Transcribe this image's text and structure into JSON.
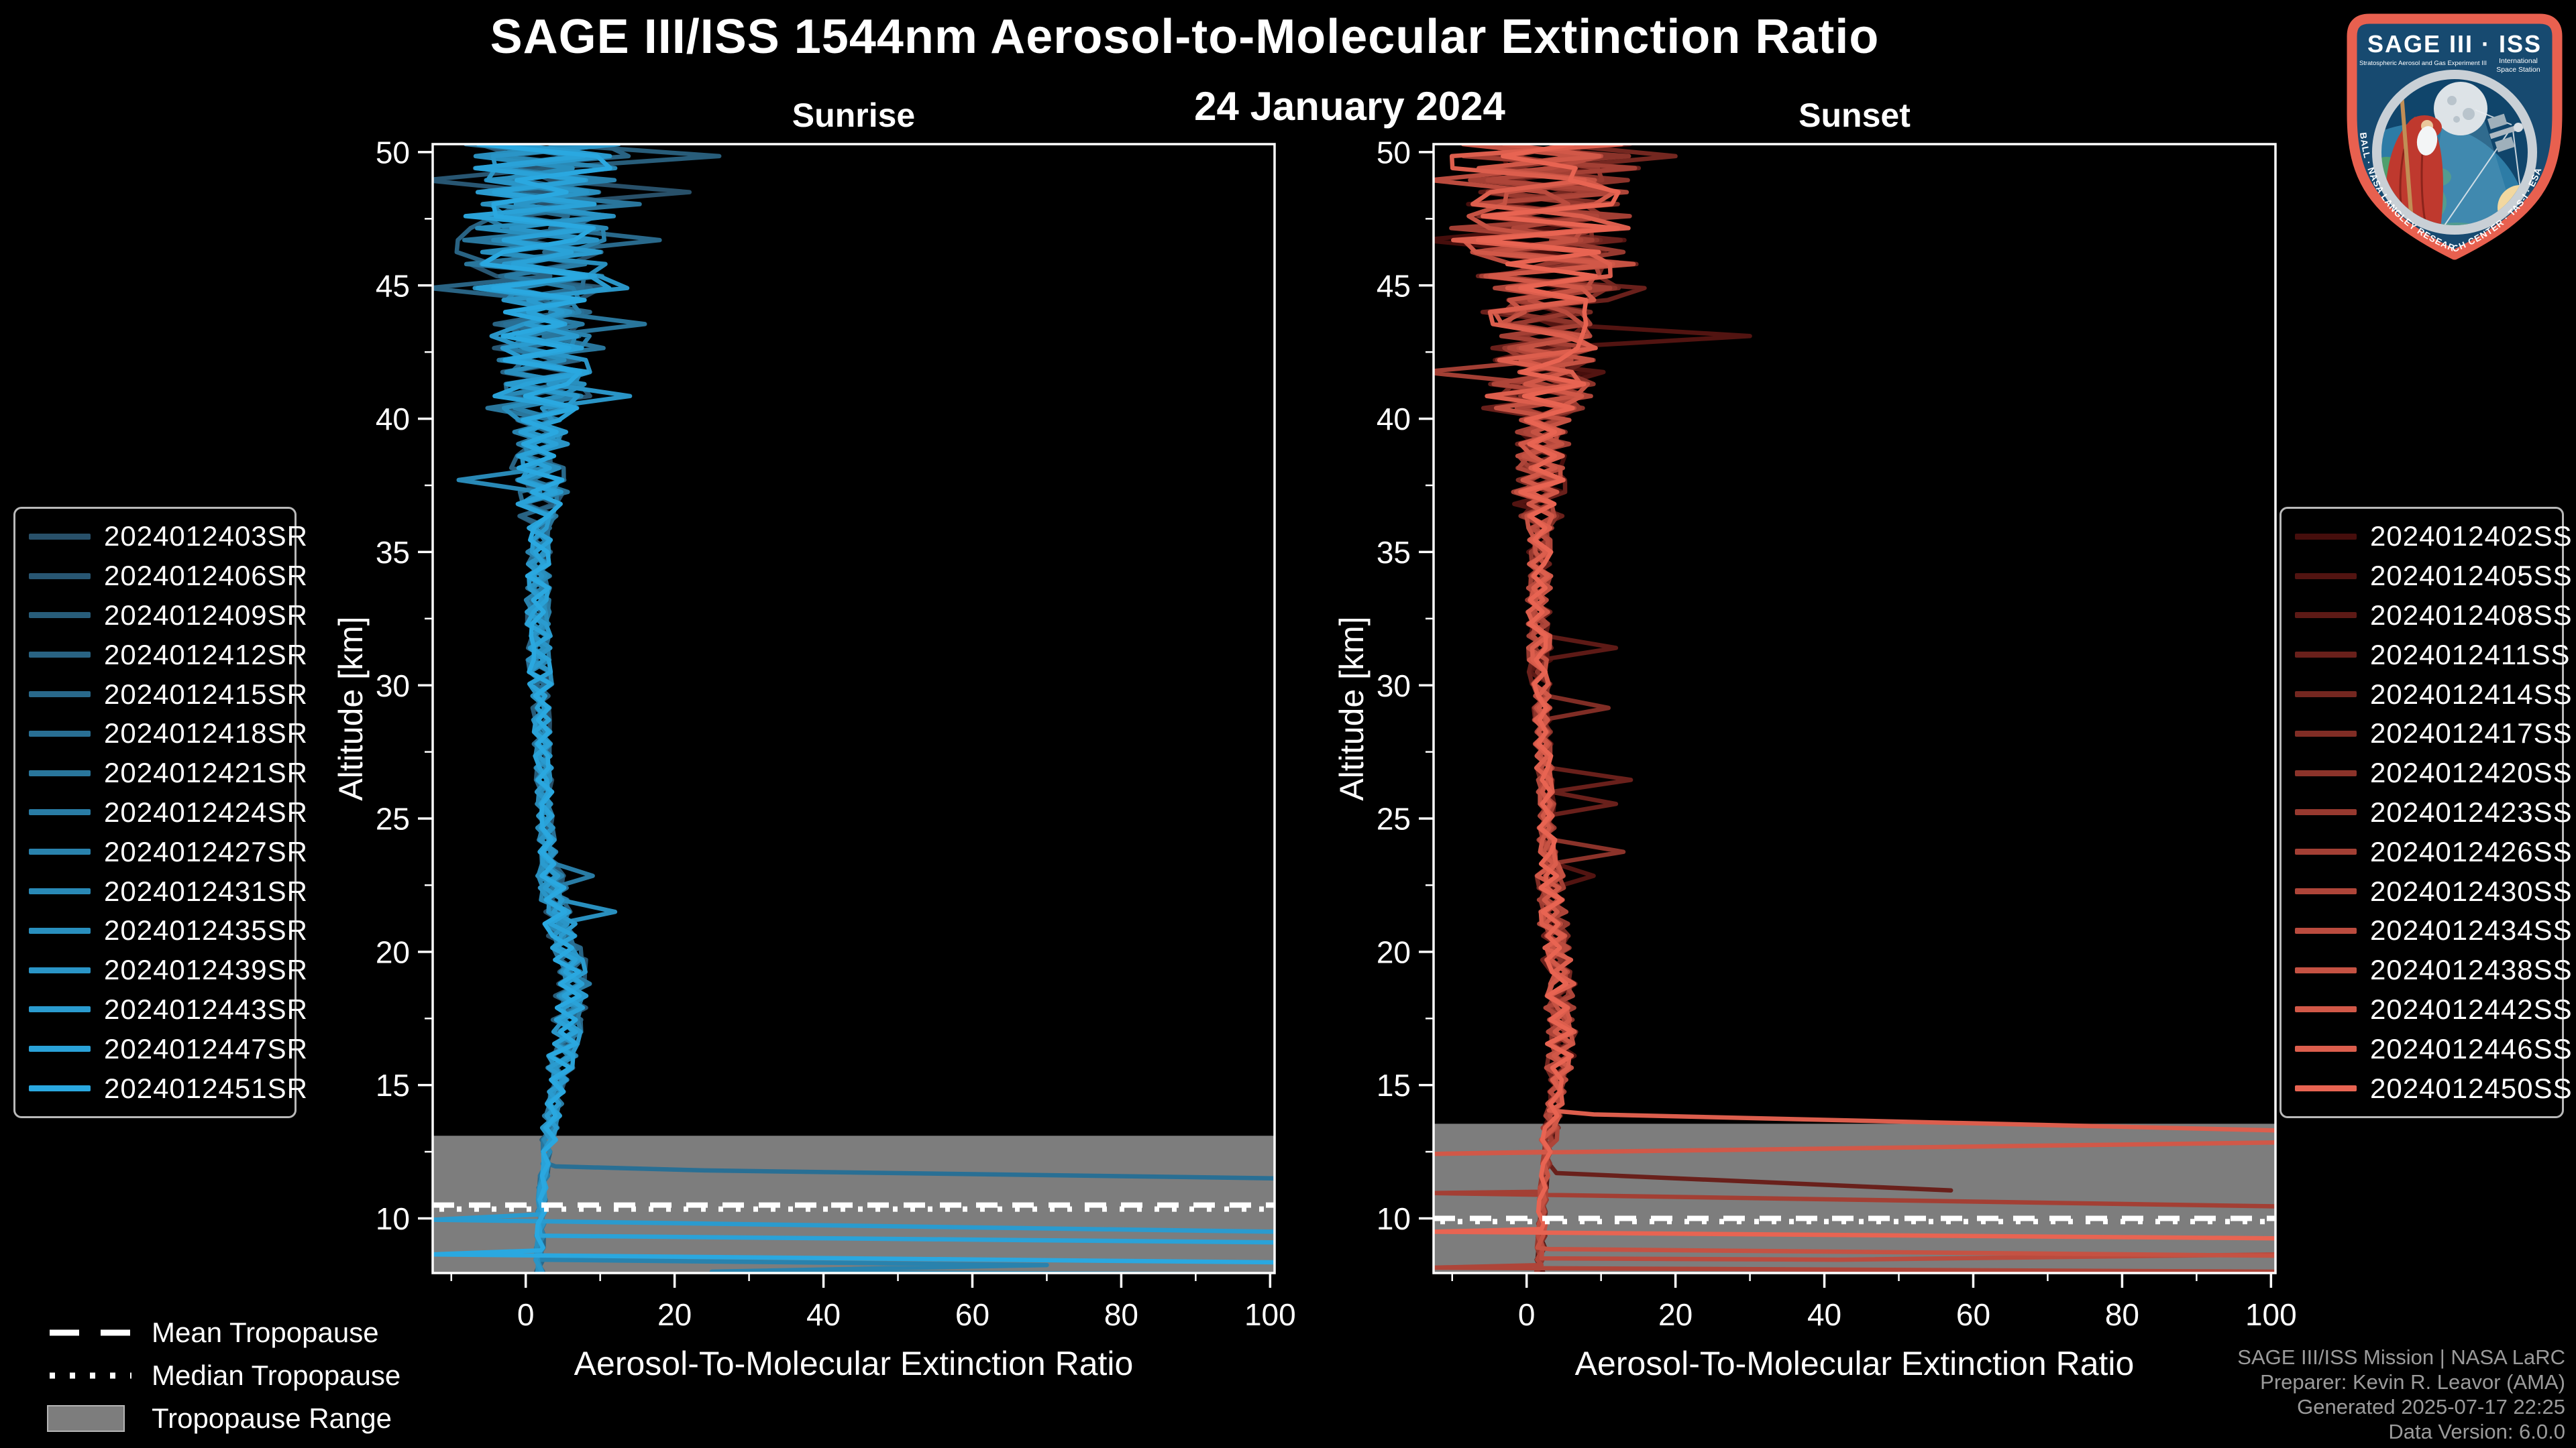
{
  "header": {
    "title": "SAGE III/ISS 1544nm Aerosol-to-Molecular Extinction Ratio",
    "date": "24 January 2024"
  },
  "chart_data": [
    {
      "type": "line",
      "title": "Sunrise",
      "xlabel": "Aerosol-To-Molecular Extinction Ratio",
      "ylabel": "Altitude [km]",
      "xlim": [
        -12.5,
        100.6
      ],
      "ylim": [
        7.95,
        50.3
      ],
      "xticks": [
        0,
        20,
        40,
        60,
        80,
        100
      ],
      "yticks": [
        10,
        15,
        20,
        25,
        30,
        35,
        40,
        45,
        50
      ],
      "xminor": [
        -10,
        10,
        30,
        50,
        70,
        90
      ],
      "yminor": [
        12.5,
        17.5,
        22.5,
        27.5,
        32.5,
        37.5,
        42.5,
        47.5
      ],
      "grid": false,
      "tropopause": {
        "mean_km": 10.5,
        "median_km": 10.35,
        "band_top_km": 13.1,
        "band_color": "#7d7d7d",
        "line_color": "#ffffff"
      },
      "series": [
        {
          "label": "2024012403SR",
          "color": "#285069",
          "seed": 11,
          "amp_top": 9,
          "amp_mid": 2.6,
          "bulge": 5.0,
          "spikes": [
            [
              48.4,
              22
            ]
          ],
          "bottom": null
        },
        {
          "label": "2024012406SR",
          "color": "#285672",
          "seed": 12,
          "amp_top": 11,
          "amp_mid": 3.0,
          "bulge": 6.5,
          "spikes": [
            [
              48.9,
              -13.5
            ]
          ],
          "bottom": null
        },
        {
          "label": "2024012409SR",
          "color": "#285d7a",
          "seed": 13,
          "amp_top": 8,
          "amp_mid": 2.4,
          "bulge": 4.5,
          "spikes": [
            [
              49.9,
              26
            ]
          ],
          "bottom": null
        },
        {
          "label": "2024012412SR",
          "color": "#296383",
          "seed": 14,
          "amp_top": 12,
          "amp_mid": 3.2,
          "bulge": 7.0,
          "spikes": [
            [
              44.7,
              -13
            ]
          ],
          "bottom": null
        },
        {
          "label": "2024012415SR",
          "color": "#29698b",
          "seed": 15,
          "amp_top": 10,
          "amp_mid": 2.8,
          "bulge": 5.5,
          "spikes": [
            [
              46.9,
              18
            ]
          ],
          "bottom": null
        },
        {
          "label": "2024012418SR",
          "color": "#296f94",
          "seed": 16,
          "amp_top": 9,
          "amp_mid": 2.5,
          "bulge": 6.0,
          "spikes": null,
          "bottom": [
            [
              11.95,
              4
            ],
            [
              11.8,
              24
            ],
            [
              11.5,
              101
            ]
          ]
        },
        {
          "label": "2024012421SR",
          "color": "#29769c",
          "seed": 17,
          "amp_top": 13,
          "amp_mid": 3.1,
          "bulge": 5.0,
          "spikes": [
            [
              43.7,
              16
            ]
          ],
          "bottom": null
        },
        {
          "label": "2024012424SR",
          "color": "#297ca5",
          "seed": 18,
          "amp_top": 8.5,
          "amp_mid": 2.4,
          "bulge": 6.5,
          "spikes": [
            [
              23.0,
              9
            ]
          ],
          "bottom": null
        },
        {
          "label": "2024012427SR",
          "color": "#2982ad",
          "seed": 19,
          "amp_top": 11,
          "amp_mid": 2.9,
          "bulge": 5.5,
          "spikes": null,
          "bottom": [
            [
              8.45,
              2
            ],
            [
              8.25,
              70
            ],
            [
              8.0,
              25
            ],
            [
              7.9,
              101
            ]
          ]
        },
        {
          "label": "2024012431SR",
          "color": "#2989b6",
          "seed": 20,
          "amp_top": 10,
          "amp_mid": 2.7,
          "bulge": 4.8,
          "spikes": [
            [
              37.6,
              -9
            ]
          ],
          "bottom": null
        },
        {
          "label": "2024012435SR",
          "color": "#298fbe",
          "seed": 21,
          "amp_top": 9.5,
          "amp_mid": 2.5,
          "bulge": 6.2,
          "spikes": [
            [
              21.3,
              12
            ]
          ],
          "bottom": null
        },
        {
          "label": "2024012439SR",
          "color": "#2a95c7",
          "seed": 22,
          "amp_top": 12,
          "amp_mid": 3.0,
          "bulge": 5.2,
          "spikes": [
            [
              40.9,
              14
            ]
          ],
          "bottom": null
        },
        {
          "label": "2024012443SR",
          "color": "#2a9bcf",
          "seed": 23,
          "amp_top": 10,
          "amp_mid": 2.6,
          "bulge": 6.8,
          "spikes": null,
          "bottom": [
            [
              10.15,
              2
            ],
            [
              9.95,
              -12.6
            ],
            [
              9.5,
              101
            ]
          ]
        },
        {
          "label": "2024012447SR",
          "color": "#2aa2d8",
          "seed": 24,
          "amp_top": 11,
          "amp_mid": 2.8,
          "bulge": 5.8,
          "spikes": null,
          "bottom": [
            [
              9.35,
              2
            ],
            [
              9.1,
              101
            ]
          ]
        },
        {
          "label": "2024012451SR",
          "color": "#2aa8e0",
          "seed": 25,
          "amp_top": 9,
          "amp_mid": 2.5,
          "bulge": 5.2,
          "spikes": null,
          "bottom": [
            [
              8.8,
              2
            ],
            [
              8.65,
              -12.6
            ],
            [
              8.35,
              101
            ]
          ]
        }
      ]
    },
    {
      "type": "line",
      "title": "Sunset",
      "xlabel": "Aerosol-To-Molecular Extinction Ratio",
      "ylabel": "Altitude [km]",
      "xlim": [
        -12.5,
        100.6
      ],
      "ylim": [
        7.95,
        50.3
      ],
      "xticks": [
        0,
        20,
        40,
        60,
        80,
        100
      ],
      "yticks": [
        10,
        15,
        20,
        25,
        30,
        35,
        40,
        45,
        50
      ],
      "xminor": [
        -10,
        10,
        30,
        50,
        70,
        90
      ],
      "yminor": [
        12.5,
        17.5,
        22.5,
        27.5,
        32.5,
        37.5,
        42.5,
        47.5
      ],
      "grid": false,
      "tropopause": {
        "mean_km": 10.0,
        "median_km": 9.88,
        "band_top_km": 13.55,
        "band_color": "#7d7d7d",
        "line_color": "#ffffff"
      },
      "series": [
        {
          "label": "2024012402SS",
          "color": "#460e0c",
          "seed": 31,
          "amp_top": 11,
          "amp_mid": 2.4,
          "bulge": 2.0,
          "spikes": [
            [
              46.6,
              -14
            ]
          ],
          "bottom": null
        },
        {
          "label": "2024012405SS",
          "color": "#521411",
          "seed": 32,
          "amp_top": 13,
          "amp_mid": 2.8,
          "bulge": 3.0,
          "spikes": [
            [
              43.05,
              30
            ],
            [
              22.8,
              9
            ]
          ],
          "bottom": null
        },
        {
          "label": "2024012408SS",
          "color": "#5d1a16",
          "seed": 33,
          "amp_top": 10,
          "amp_mid": 2.2,
          "bulge": 2.5,
          "spikes": [
            [
              31.5,
              12
            ]
          ],
          "bottom": null
        },
        {
          "label": "2024012411SS",
          "color": "#69201b",
          "seed": 34,
          "amp_top": 14,
          "amp_mid": 3.0,
          "bulge": 2.0,
          "spikes": [
            [
              26.3,
              14
            ],
            [
              25.6,
              12
            ]
          ],
          "bottom": [
            [
              11.7,
              4
            ],
            [
              11.05,
              57
            ]
          ]
        },
        {
          "label": "2024012414SS",
          "color": "#742720",
          "seed": 35,
          "amp_top": 11,
          "amp_mid": 2.6,
          "bulge": 3.0,
          "spikes": [
            [
              50.05,
              20
            ]
          ],
          "bottom": null
        },
        {
          "label": "2024012417SS",
          "color": "#802d25",
          "seed": 36,
          "amp_top": 10,
          "amp_mid": 2.4,
          "bulge": 2.5,
          "spikes": [
            [
              29.8,
              13
            ],
            [
              29.2,
              11
            ]
          ],
          "bottom": null
        },
        {
          "label": "2024012420SS",
          "color": "#8b332a",
          "seed": 37,
          "amp_top": 12,
          "amp_mid": 3.2,
          "bulge": 2.0,
          "spikes": [
            [
              23.6,
              13
            ]
          ],
          "bottom": null
        },
        {
          "label": "2024012423SS",
          "color": "#97392f",
          "seed": 38,
          "amp_top": 9,
          "amp_mid": 2.6,
          "bulge": 3.0,
          "spikes": [
            [
              46.3,
              13
            ]
          ],
          "bottom": null
        },
        {
          "label": "2024012426SS",
          "color": "#a33f34",
          "seed": 39,
          "amp_top": 13,
          "amp_mid": 3.0,
          "bulge": 2.5,
          "spikes": [
            [
              41.6,
              -14
            ]
          ],
          "bottom": [
            [
              11.0,
              2
            ],
            [
              10.95,
              -12.6
            ],
            [
              10.45,
              101
            ]
          ]
        },
        {
          "label": "2024012430SS",
          "color": "#ae4539",
          "seed": 40,
          "amp_top": 11,
          "amp_mid": 2.4,
          "bulge": 2.0,
          "spikes": null,
          "bottom": [
            [
              8.25,
              2
            ],
            [
              8.15,
              -12.6
            ],
            [
              8.0,
              101
            ]
          ]
        },
        {
          "label": "2024012434SS",
          "color": "#ba4b3e",
          "seed": 41,
          "amp_top": 10,
          "amp_mid": 2.6,
          "bulge": 2.5,
          "spikes": [
            [
              48.8,
              -13
            ]
          ],
          "bottom": [
            [
              8.5,
              2
            ],
            [
              8.45,
              42
            ],
            [
              8.65,
              101
            ]
          ]
        },
        {
          "label": "2024012438SS",
          "color": "#c55243",
          "seed": 42,
          "amp_top": 12,
          "amp_mid": 2.8,
          "bulge": 3.0,
          "spikes": null,
          "bottom": [
            [
              8.85,
              3
            ],
            [
              8.6,
              101
            ]
          ]
        },
        {
          "label": "2024012442SS",
          "color": "#d15848",
          "seed": 43,
          "amp_top": 11,
          "amp_mid": 2.4,
          "bulge": 2.0,
          "spikes": null,
          "bottom": [
            [
              12.5,
              3
            ],
            [
              12.42,
              -12.6
            ],
            [
              12.85,
              101
            ]
          ]
        },
        {
          "label": "2024012446SS",
          "color": "#dc5e4d",
          "seed": 44,
          "amp_top": 13,
          "amp_mid": 2.6,
          "bulge": 2.5,
          "spikes": null,
          "bottom": [
            [
              14.05,
              3
            ],
            [
              13.9,
              9
            ],
            [
              13.3,
              101
            ]
          ]
        },
        {
          "label": "2024012450SS",
          "color": "#e86452",
          "seed": 45,
          "amp_top": 10,
          "amp_mid": 2.4,
          "bulge": 2.0,
          "spikes": null,
          "bottom": [
            [
              9.6,
              2
            ],
            [
              9.5,
              -12.6
            ],
            [
              9.25,
              101
            ]
          ]
        }
      ]
    }
  ],
  "tropopause_legend": {
    "items": [
      {
        "label": "Mean Tropopause",
        "style": "dashed"
      },
      {
        "label": "Median Tropopause",
        "style": "dotted"
      },
      {
        "label": "Tropopause Range",
        "style": "band",
        "color": "#7d7d7d"
      }
    ]
  },
  "attribution": {
    "color": "#9b9b9b",
    "lines": [
      "SAGE III/ISS Mission | NASA LaRC",
      "Preparer: Kevin R. Leavor (AMA)",
      "Generated 2025-07-17 22:25",
      "Data Version: 6.0.0"
    ]
  },
  "logo": {
    "title_main": "SAGE III · ISS",
    "subtitle_left": "Stratospheric Aerosol and Gas Experiment III",
    "subtitle_right_1": "International",
    "subtitle_right_2": "Space Station",
    "ring_text": "BALL · NASA LANGLEY RESEARCH CENTER · TAS-I · ESA",
    "border_color": "#e8604f",
    "bg_color": "#174a70"
  }
}
